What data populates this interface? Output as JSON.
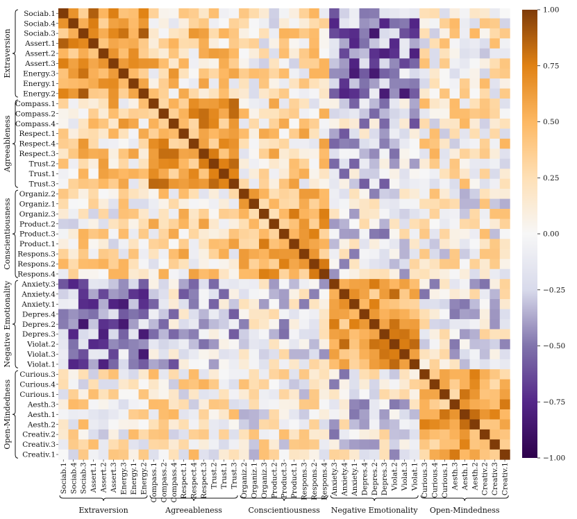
{
  "chart_data": {
    "type": "heatmap",
    "title": "",
    "labels": [
      "Sociab.1",
      "Sociab.4",
      "Sociab.3",
      "Assert.1",
      "Assert.2",
      "Assert.3",
      "Energy.3",
      "Energy.1",
      "Energy.2",
      "Compass.1",
      "Compass.2",
      "Compass.4",
      "Respect.1",
      "Respect.4",
      "Respect.3",
      "Trust.2",
      "Trust.1",
      "Trust.3",
      "Organiz.2",
      "Organiz.1",
      "Organiz.3",
      "Product.2",
      "Product.3",
      "Product.1",
      "Respons.3",
      "Respons.2",
      "Respons.4",
      "Anxiety.3",
      "Anxiety.4",
      "Anxiety.1",
      "Depres.4",
      "Depres.2",
      "Depres.3",
      "Violat.2",
      "Violat.3",
      "Violat.1",
      "Curious.3",
      "Curious.4",
      "Curious.1",
      "Aesth.3",
      "Aesth.1",
      "Aesth.2",
      "Creativ.2",
      "Creativ.3",
      "Creativ.1"
    ],
    "groups": [
      {
        "name": "Extraversion",
        "size": 9
      },
      {
        "name": "Agreeableness",
        "size": 9
      },
      {
        "name": "Conscientiousness",
        "size": 9
      },
      {
        "name": "Negative Emotionality",
        "size": 9
      },
      {
        "name": "Open-Mindedness",
        "size": 9
      }
    ],
    "within_block_mean": [
      0.62,
      0.58,
      0.5,
      0.6,
      0.55
    ],
    "between_block_mean": [
      [
        0.62,
        0.25,
        0.12,
        -0.45,
        0.1
      ],
      [
        0.25,
        0.58,
        0.2,
        -0.22,
        0.12
      ],
      [
        0.12,
        0.2,
        0.5,
        -0.1,
        0.05
      ],
      [
        -0.45,
        -0.22,
        -0.1,
        0.6,
        -0.08
      ],
      [
        0.1,
        0.12,
        0.05,
        -0.08,
        0.55
      ]
    ],
    "color_range": [
      -1.0,
      1.0
    ],
    "colormap": "PuOr_r",
    "colorbar_ticks": [
      "1.00",
      "0.75",
      "0.50",
      "0.25",
      "0.00",
      "−0.25",
      "−0.50",
      "−0.75",
      "−1.00"
    ],
    "colorbar_tick_values": [
      1.0,
      0.75,
      0.5,
      0.25,
      0.0,
      -0.25,
      -0.5,
      -0.75,
      -1.0
    ]
  }
}
